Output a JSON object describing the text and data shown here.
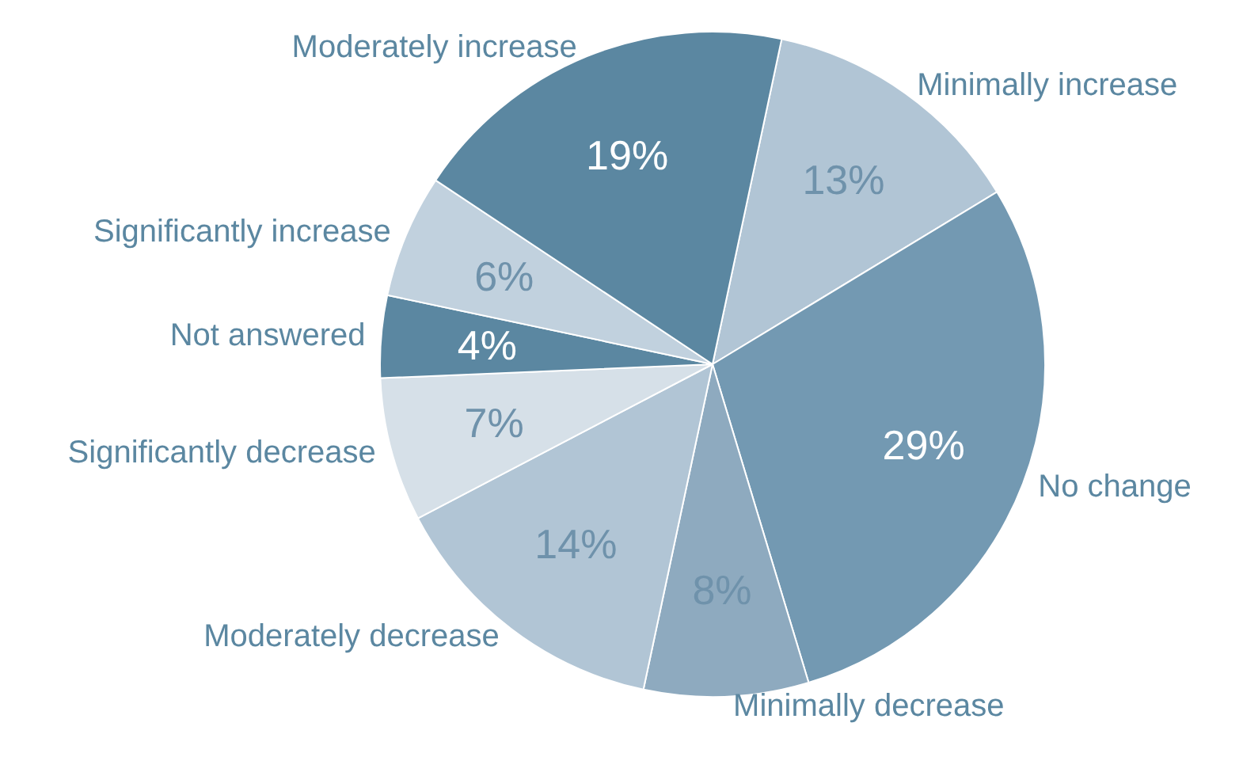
{
  "chart_data": {
    "type": "pie",
    "categories": [
      "Minimally increase",
      "No change",
      "Minimally decrease",
      "Moderately decrease",
      "Significantly decrease",
      "Not answered",
      "Significantly increase",
      "Moderately increase"
    ],
    "values": [
      13,
      29,
      8,
      14,
      7,
      4,
      6,
      19
    ],
    "value_labels": [
      "13%",
      "29%",
      "8%",
      "14%",
      "7%",
      "4%",
      "6%",
      "19%"
    ],
    "colors": [
      "#b1c5d5",
      "#7399b2",
      "#8eaabf",
      "#b1c5d5",
      "#d6e0e8",
      "#5b87a1",
      "#c1d1de",
      "#5b87a1"
    ],
    "legend": false
  }
}
